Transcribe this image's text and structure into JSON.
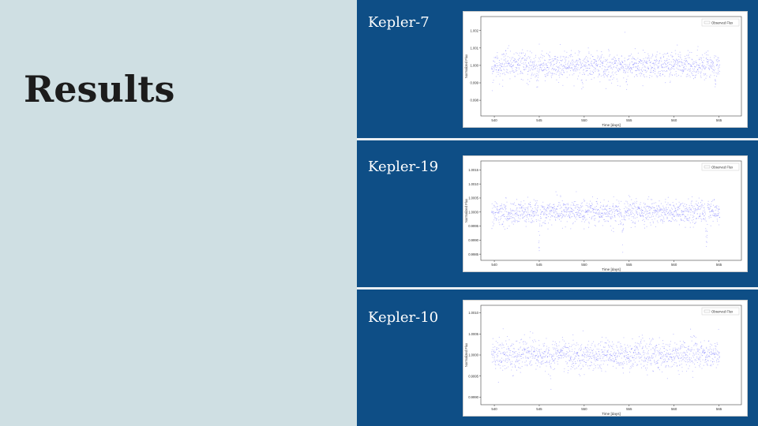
{
  "slide": {
    "title": "Results"
  },
  "panels": [
    {
      "label": "Kepler-7"
    },
    {
      "label": "Kepler-19"
    },
    {
      "label": "Kepler-10"
    }
  ],
  "chart_data": [
    {
      "type": "scatter",
      "title": "",
      "xlabel": "Time [days]",
      "ylabel": "Normalized Flux",
      "xlim": [
        538.5,
        567.5
      ],
      "ylim": [
        0.9971,
        1.0028
      ],
      "xticks": [
        540,
        545,
        550,
        555,
        560,
        565
      ],
      "yticks": [
        "1.002",
        "1.001",
        "1.000",
        "0.999",
        "0.998"
      ],
      "ytick_values": [
        1.002,
        1.001,
        1.0,
        0.999,
        0.998
      ],
      "legend": {
        "entries": [
          "Observed Flux"
        ],
        "placement": "top-right"
      },
      "series": [
        {
          "name": "Observed Flux",
          "color": "#3333ff",
          "baseline": 1.0,
          "scatter": 0.0004,
          "dips": [
            {
              "t": 539.8,
              "depth": 0.0006
            },
            {
              "t": 544.8,
              "depth": 0.0006
            },
            {
              "t": 549.8,
              "depth": 0.0006
            },
            {
              "t": 554.7,
              "depth": 0.0006
            },
            {
              "t": 559.6,
              "depth": 0.0006
            },
            {
              "t": 564.6,
              "depth": 0.0006
            }
          ]
        }
      ]
    },
    {
      "type": "scatter",
      "title": "",
      "xlabel": "Time [days]",
      "ylabel": "Normalized Flux",
      "xlim": [
        538.5,
        567.5
      ],
      "ylim": [
        0.99828,
        1.00182
      ],
      "xticks": [
        540,
        545,
        550,
        555,
        560,
        565
      ],
      "yticks": [
        "1.0015",
        "1.0010",
        "1.0005",
        "1.0000",
        "0.9995",
        "0.9990",
        "0.9985"
      ],
      "ytick_values": [
        1.0015,
        1.001,
        1.0005,
        1.0,
        0.9995,
        0.999,
        0.9985
      ],
      "legend": {
        "entries": [
          "Observed Flux"
        ],
        "placement": "top-right"
      },
      "series": [
        {
          "name": "Observed Flux",
          "color": "#3333ff",
          "baseline": 1.0,
          "scatter": 0.00022,
          "dips": [
            {
              "t": 545.0,
              "depth": 0.0009
            },
            {
              "t": 554.3,
              "depth": 0.0009
            },
            {
              "t": 563.6,
              "depth": 0.0009
            }
          ]
        }
      ]
    },
    {
      "type": "scatter",
      "title": "",
      "xlabel": "Time [days]",
      "ylabel": "Normalized Flux",
      "xlim": [
        538.5,
        567.5
      ],
      "ylim": [
        0.99882,
        1.00118
      ],
      "xticks": [
        540,
        545,
        550,
        555,
        560,
        565
      ],
      "yticks": [
        "1.0010",
        "1.0005",
        "1.0000",
        "0.9995",
        "0.9990"
      ],
      "ytick_values": [
        1.001,
        1.0005,
        1.0,
        0.9995,
        0.999
      ],
      "legend": {
        "entries": [
          "Observed Flux"
        ],
        "placement": "top-right"
      },
      "series": [
        {
          "name": "Observed Flux",
          "color": "#3333ff",
          "baseline": 1.0,
          "scatter": 0.00018,
          "dips": [
            {
              "t": 546.3,
              "depth": 0.0004
            }
          ]
        }
      ]
    }
  ]
}
